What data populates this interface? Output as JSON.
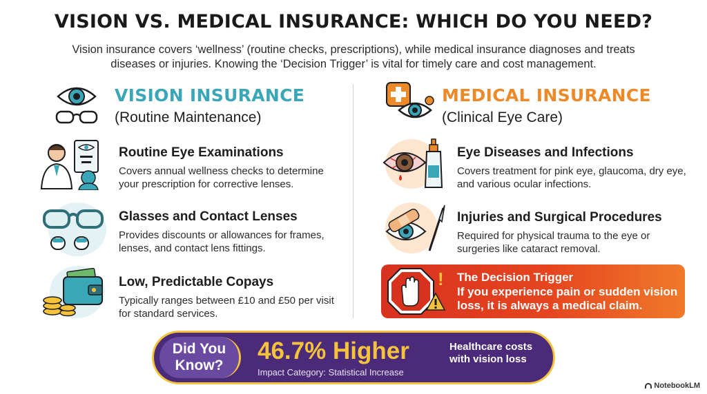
{
  "title": "VISION VS. MEDICAL INSURANCE: WHICH DO YOU NEED?",
  "intro": "Vision insurance covers ‘wellness’ (routine checks, prescriptions), while medical insurance diagnoses and treats diseases or injuries. Knowing the ‘Decision Trigger’ is vital for timely care and cost management.",
  "vision": {
    "heading": "VISION INSURANCE",
    "subheading": "(Routine Maintenance)",
    "items": [
      {
        "title": "Routine Eye Examinations",
        "desc": "Covers annual wellness checks to determine your prescription for corrective lenses.",
        "icon": "optometrist-icon"
      },
      {
        "title": "Glasses and Contact Lenses",
        "desc": "Provides discounts or allowances for frames, lenses, and contact lens fittings.",
        "icon": "glasses-contacts-icon"
      },
      {
        "title": "Low, Predictable Copays",
        "desc": "Typically ranges between £10 and £50 per visit for standard services.",
        "icon": "wallet-coins-icon"
      }
    ]
  },
  "medical": {
    "heading": "MEDICAL INSURANCE",
    "subheading": "(Clinical Eye Care)",
    "items": [
      {
        "title": "Eye Diseases and Infections",
        "desc": "Covers treatment for pink eye, glaucoma, dry eye, and various ocular infections.",
        "icon": "red-eye-drops-icon"
      },
      {
        "title": "Injuries and Surgical Procedures",
        "desc": "Required for physical trauma to the eye or surgeries like cataract removal.",
        "icon": "bandaged-eye-scalpel-icon"
      }
    ]
  },
  "trigger": {
    "title": "The Decision Trigger",
    "text": "If you experience pain or sudden vision loss, it is always a medical claim.",
    "mark": "!"
  },
  "did_you_know": {
    "label_line1": "Did You",
    "label_line2": "Know?",
    "stat": "46.7% Higher",
    "category": "Impact Category: Statistical Increase",
    "note": "Healthcare costs with vision loss"
  },
  "brand": "NotebookLM",
  "colors": {
    "vision_accent": "#3aa7b9",
    "medical_accent": "#ec8a2a",
    "trigger_red": "#d8321f",
    "dyk_purple": "#4b2a7a",
    "dyk_gold": "#f5c33b"
  }
}
